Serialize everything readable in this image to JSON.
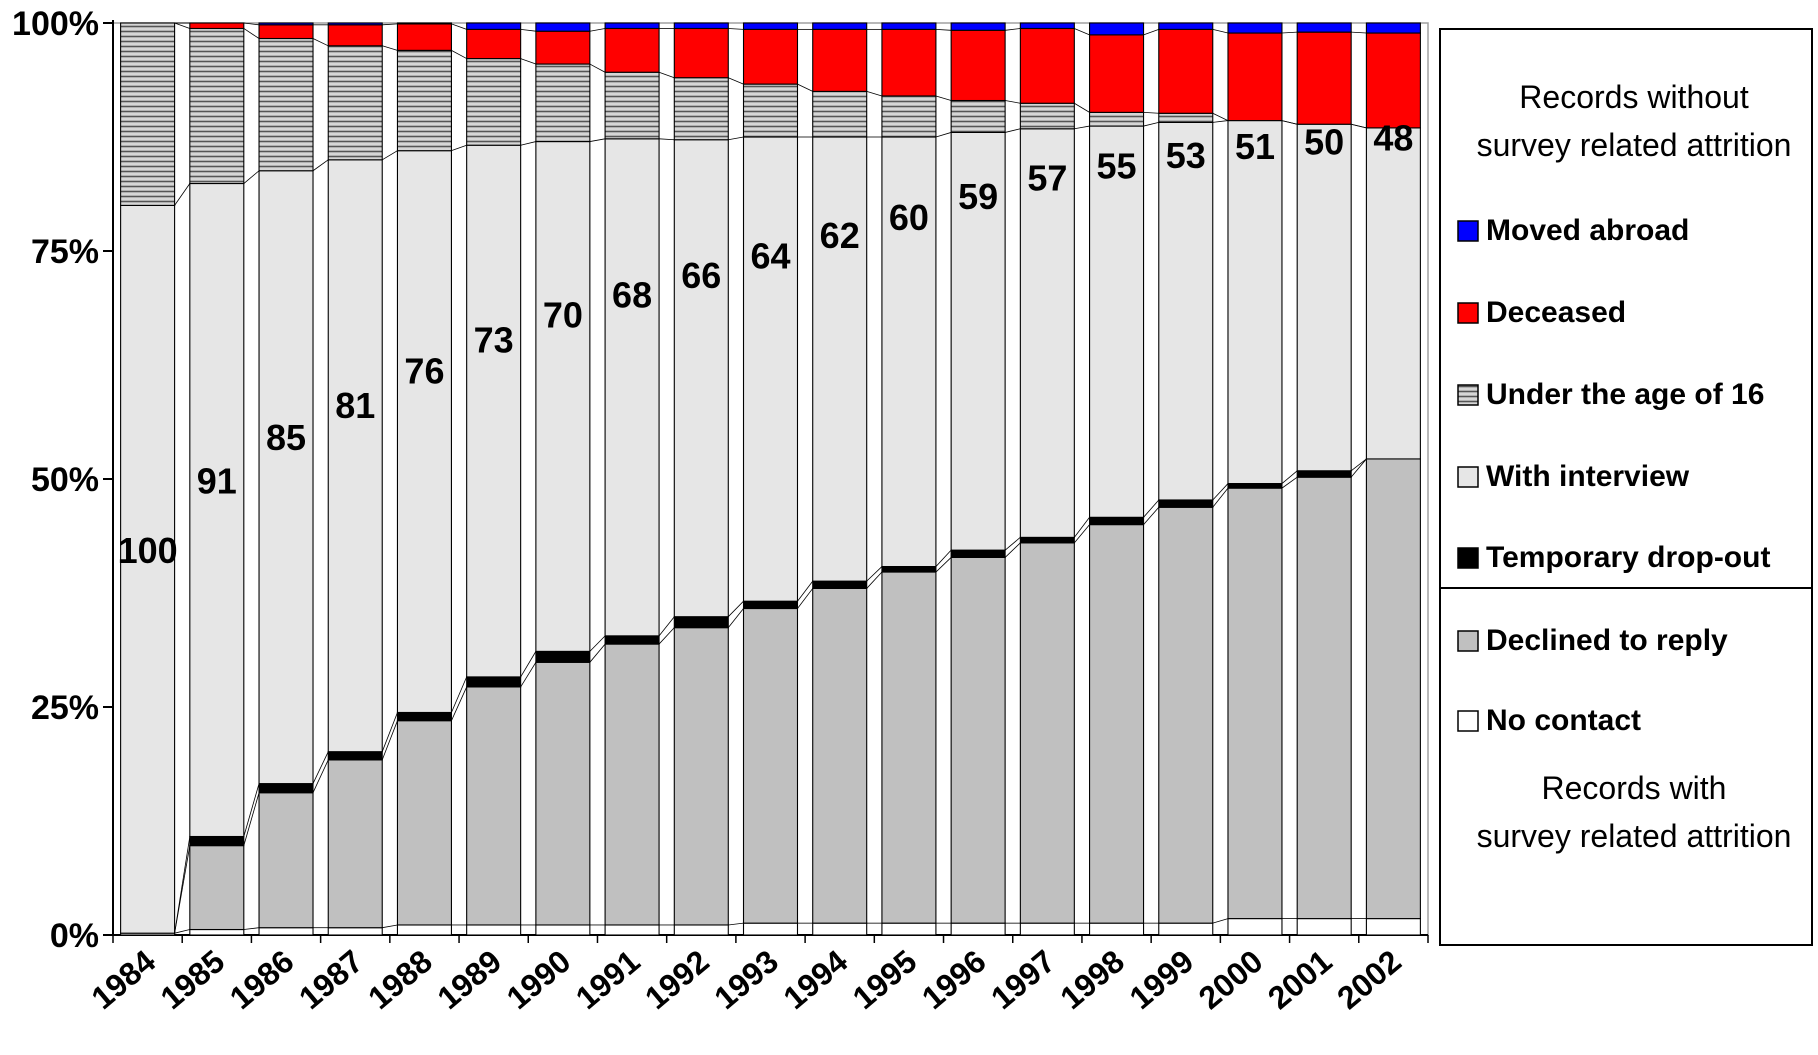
{
  "chart_data": {
    "type": "bar",
    "stacked": true,
    "normalized_percent": true,
    "categories": [
      "1984",
      "1985",
      "1986",
      "1987",
      "1988",
      "1989",
      "1990",
      "1991",
      "1992",
      "1993",
      "1994",
      "1995",
      "1996",
      "1997",
      "1998",
      "1999",
      "2000",
      "2001",
      "2002"
    ],
    "series": [
      {
        "name": "No contact",
        "color": "#ffffff",
        "pattern": "none",
        "values": [
          0.2,
          0.6,
          0.8,
          0.8,
          1.1,
          1.1,
          1.1,
          1.1,
          1.1,
          1.3,
          1.3,
          1.3,
          1.3,
          1.3,
          1.3,
          1.3,
          1.8,
          1.8,
          1.8
        ]
      },
      {
        "name": "Declined to reply",
        "color": "#c0c0c0",
        "pattern": "none",
        "values": [
          0,
          9.2,
          14.8,
          18.4,
          22.4,
          26.1,
          28.8,
          30.8,
          32.6,
          34.5,
          36.7,
          38.5,
          40.1,
          41.7,
          43.7,
          45.6,
          47.2,
          48.4,
          50.4
        ]
      },
      {
        "name": "Temporary drop-out",
        "color": "#000000",
        "pattern": "none",
        "values": [
          0,
          1.0,
          1.0,
          0.9,
          0.9,
          1.1,
          1.2,
          0.9,
          1.2,
          0.8,
          0.8,
          0.6,
          0.8,
          0.6,
          0.8,
          0.8,
          0.5,
          0.7,
          0
        ]
      },
      {
        "name": "With interview",
        "color": "#e6e6e6",
        "pattern": "none",
        "values": [
          79.8,
          71.6,
          67.2,
          64.9,
          61.6,
          58.3,
          55.9,
          54.5,
          52.3,
          50.9,
          48.7,
          47.1,
          45.8,
          44.8,
          42.9,
          41.4,
          39.8,
          38.0,
          36.3
        ]
      },
      {
        "name": "Under the age of 16",
        "color": "#b0b0b0",
        "pattern": "hlines",
        "values": [
          20.0,
          17.0,
          14.5,
          12.5,
          11.0,
          9.5,
          8.5,
          7.3,
          6.8,
          5.8,
          5.0,
          4.5,
          3.5,
          2.8,
          1.5,
          1.0,
          0,
          0,
          0
        ]
      },
      {
        "name": "Deceased",
        "color": "#ff0000",
        "pattern": "none",
        "values": [
          0,
          0.6,
          1.5,
          2.3,
          2.9,
          3.2,
          3.6,
          4.8,
          5.4,
          6.0,
          6.8,
          7.3,
          7.7,
          8.2,
          8.5,
          9.2,
          9.6,
          10.1,
          10.4
        ]
      },
      {
        "name": "Moved abroad",
        "color": "#0000ff",
        "pattern": "none",
        "values": [
          0,
          0,
          0.2,
          0.2,
          0.1,
          0.7,
          0.9,
          0.6,
          0.6,
          0.7,
          0.7,
          0.7,
          0.8,
          0.6,
          1.3,
          0.7,
          1.1,
          1.0,
          1.1
        ]
      }
    ],
    "data_labels": [
      "100",
      "91",
      "85",
      "81",
      "76",
      "73",
      "70",
      "68",
      "66",
      "64",
      "62",
      "60",
      "59",
      "57",
      "55",
      "53",
      "51",
      "50",
      "48"
    ],
    "yticks": [
      "0%",
      "25%",
      "50%",
      "75%",
      "100%"
    ],
    "ylim": [
      0,
      100
    ],
    "title": "",
    "xlabel": "",
    "ylabel": "",
    "grid": false,
    "legend_placement": "right",
    "legend": {
      "top_group_title": [
        "Records without",
        "survey related attrition"
      ],
      "bottom_group_title": [
        "Records with",
        "survey related attrition"
      ],
      "top_group": [
        "Moved abroad",
        "Deceased",
        "Under the age of 16",
        "With interview",
        "Temporary drop-out"
      ],
      "bottom_group": [
        "Declined to reply",
        "No contact"
      ]
    }
  }
}
